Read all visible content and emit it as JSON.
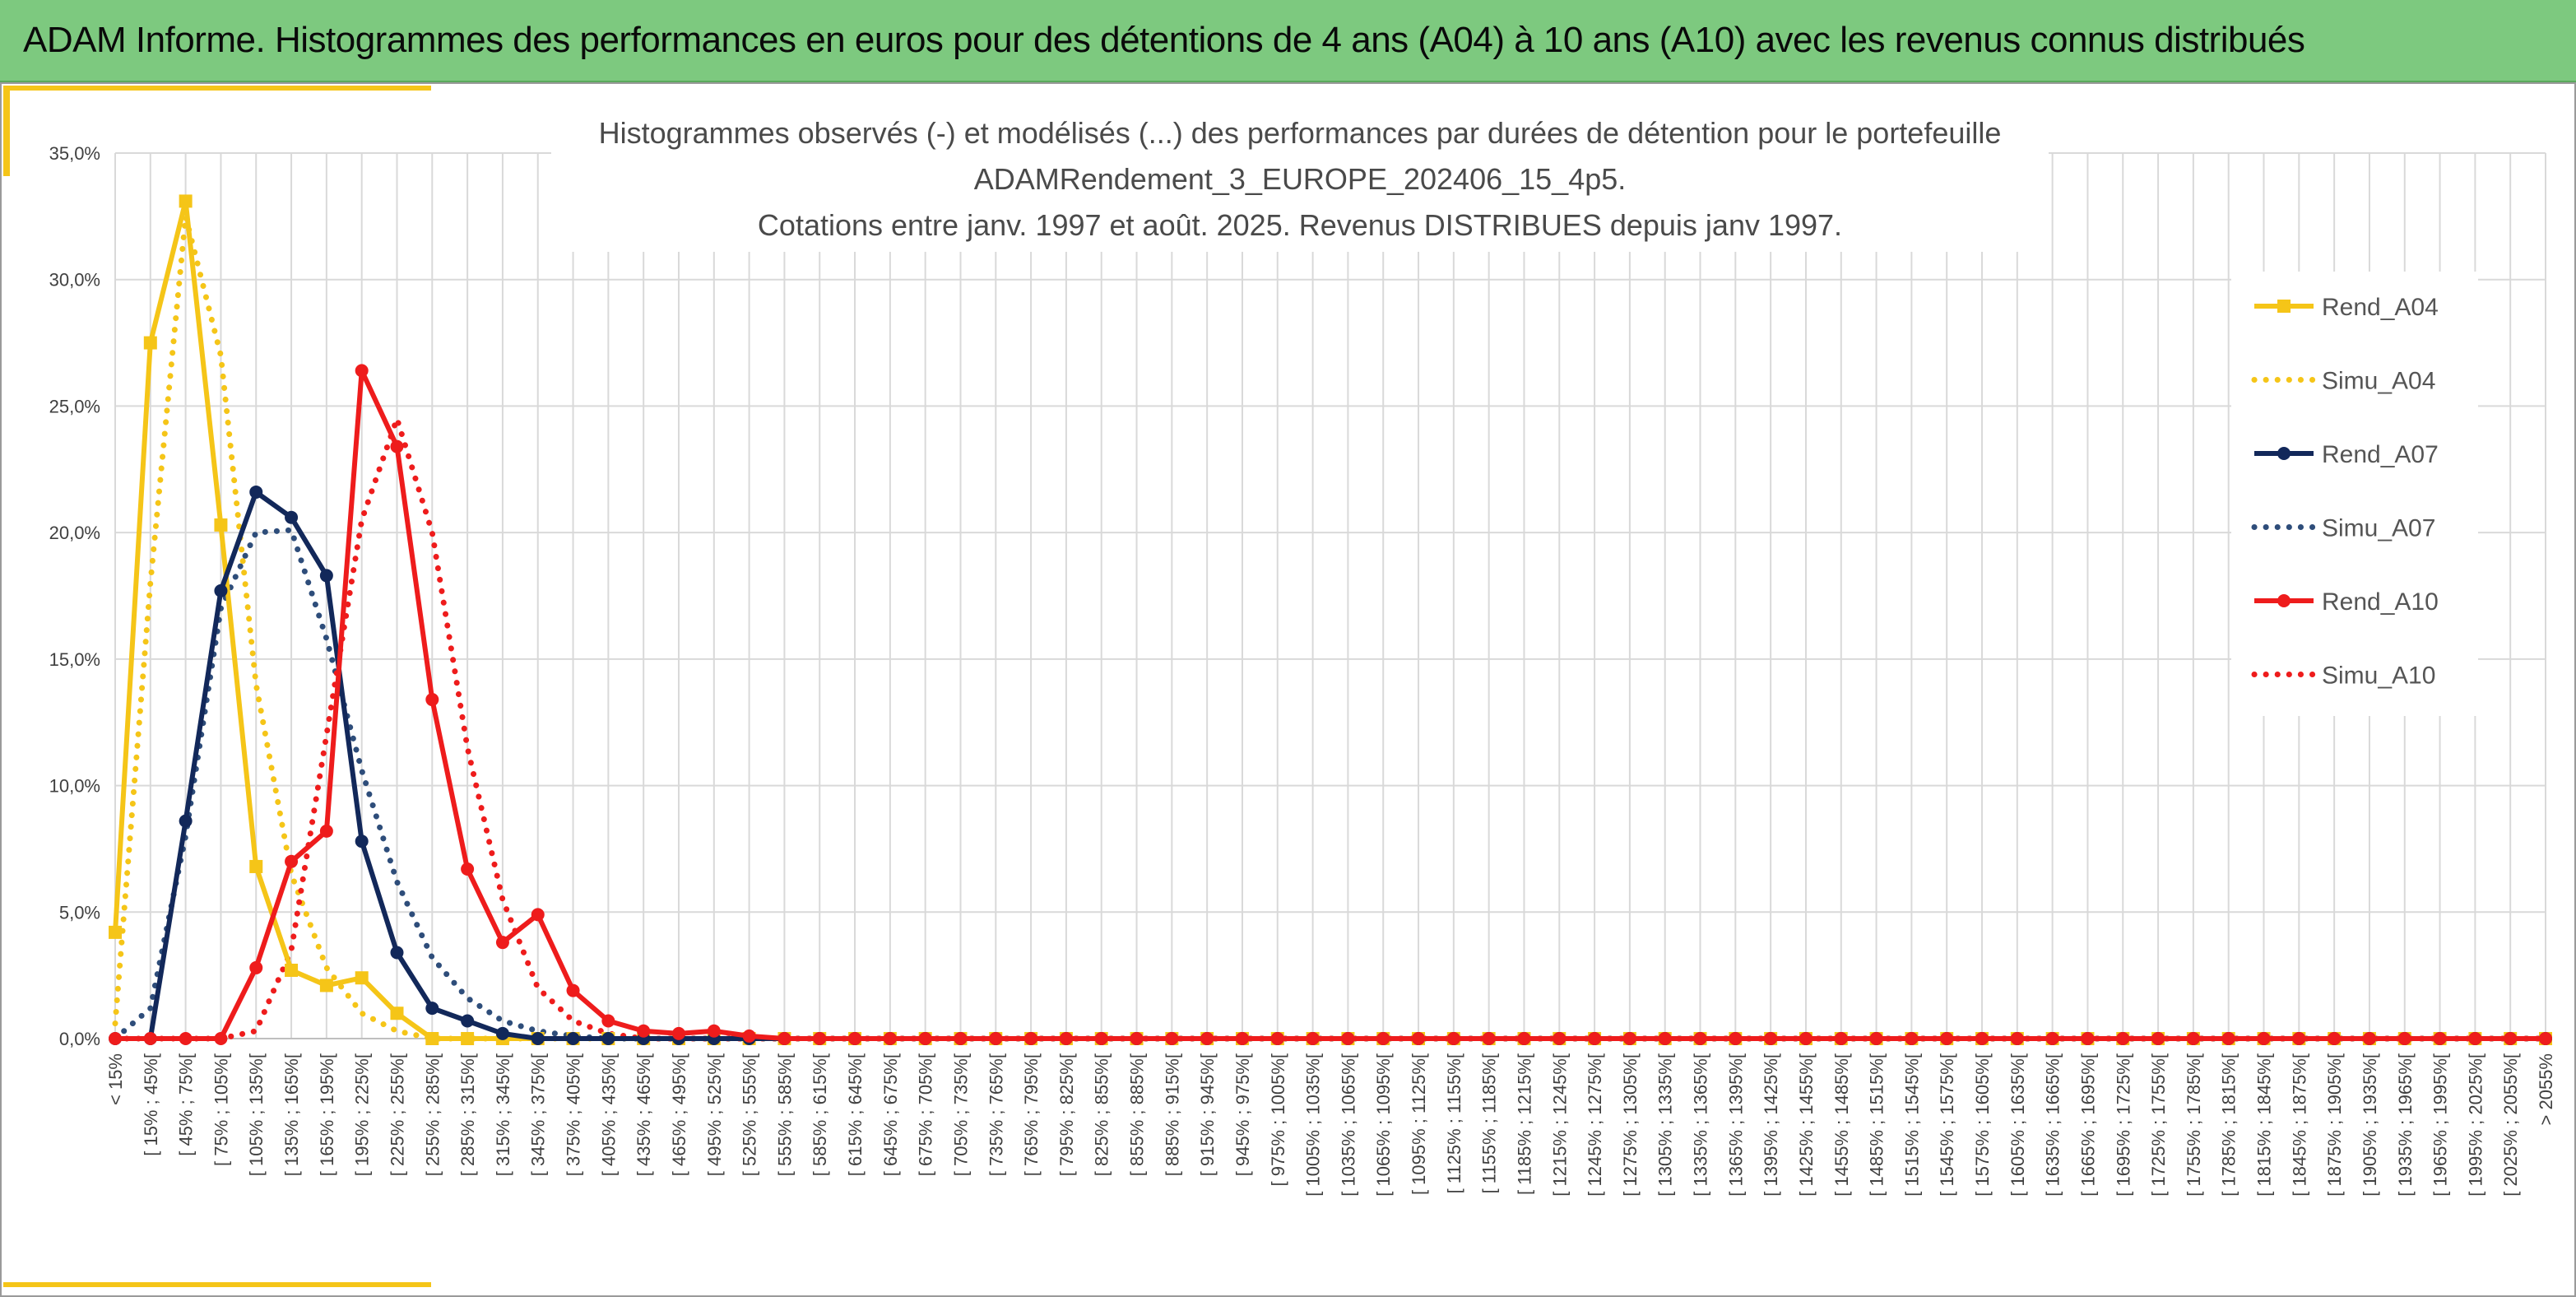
{
  "header": {
    "title": "ADAM Informe. Histogrammes des performances en euros pour des détentions de 4 ans (A04) à 10 ans (A10) avec les revenus connus distribués"
  },
  "colors": {
    "banner": "#7dc97f",
    "accent": "#f5c518",
    "A04": "#f5c518",
    "A07": "#12285a",
    "A07_simu": "#2e4d7a",
    "A10": "#ee1c1c",
    "grid": "#d9d9d9"
  },
  "chart_data": {
    "type": "line",
    "title_lines": [
      "Histogrammes observés (-) et modélisés (...) des performances par durées de détention pour le portefeuille",
      "ADAMRendement_3_EUROPE_202406_15_4p5.",
      "Cotations entre janv. 1997 et août. 2025. Revenus DISTRIBUES depuis janv 1997."
    ],
    "xlabel": "",
    "ylabel": "",
    "ylim": [
      0,
      35
    ],
    "y_ticks": [
      "0,0%",
      "5,0%",
      "10,0%",
      "15,0%",
      "20,0%",
      "25,0%",
      "30,0%",
      "35,0%"
    ],
    "grid": true,
    "legend_position": "right",
    "categories": [
      "< 15%",
      "[ 15% ; 45%[",
      "[ 45% ; 75%[",
      "[ 75% ; 105%[",
      "[ 105% ; 135%[",
      "[ 135% ; 165%[",
      "[ 165% ; 195%[",
      "[ 195% ; 225%[",
      "[ 225% ; 255%[",
      "[ 255% ; 285%[",
      "[ 285% ; 315%[",
      "[ 315% ; 345%[",
      "[ 345% ; 375%[",
      "[ 375% ; 405%[",
      "[ 405% ; 435%[",
      "[ 435% ; 465%[",
      "[ 465% ; 495%[",
      "[ 495% ; 525%[",
      "[ 525% ; 555%[",
      "[ 555% ; 585%[",
      "[ 585% ; 615%[",
      "[ 615% ; 645%[",
      "[ 645% ; 675%[",
      "[ 675% ; 705%[",
      "[ 705% ; 735%[",
      "[ 735% ; 765%[",
      "[ 765% ; 795%[",
      "[ 795% ; 825%[",
      "[ 825% ; 855%[",
      "[ 855% ; 885%[",
      "[ 885% ; 915%[",
      "[ 915% ; 945%[",
      "[ 945% ; 975%[",
      "[ 975% ; 1005%[",
      "[ 1005% ; 1035%[",
      "[ 1035% ; 1065%[",
      "[ 1065% ; 1095%[",
      "[ 1095% ; 1125%[",
      "[ 1125% ; 1155%[",
      "[ 1155% ; 1185%[",
      "[ 1185% ; 1215%[",
      "[ 1215% ; 1245%[",
      "[ 1245% ; 1275%[",
      "[ 1275% ; 1305%[",
      "[ 1305% ; 1335%[",
      "[ 1335% ; 1365%[",
      "[ 1365% ; 1395%[",
      "[ 1395% ; 1425%[",
      "[ 1425% ; 1455%[",
      "[ 1455% ; 1485%[",
      "[ 1485% ; 1515%[",
      "[ 1515% ; 1545%[",
      "[ 1545% ; 1575%[",
      "[ 1575% ; 1605%[",
      "[ 1605% ; 1635%[",
      "[ 1635% ; 1665%[",
      "[ 1665% ; 1695%[",
      "[ 1695% ; 1725%[",
      "[ 1725% ; 1755%[",
      "[ 1755% ; 1785%[",
      "[ 1785% ; 1815%[",
      "[ 1815% ; 1845%[",
      "[ 1845% ; 1875%[",
      "[ 1875% ; 1905%[",
      "[ 1905% ; 1935%[",
      "[ 1935% ; 1965%[",
      "[ 1965% ; 1995%[",
      "[ 1995% ; 2025%[",
      "[ 2025% ; 2055%[",
      "> 2055%"
    ],
    "series": [
      {
        "name": "Rend_A04",
        "style": "solid",
        "marker": "square",
        "color": "#f5c518",
        "values": [
          4.2,
          27.5,
          33.1,
          20.3,
          6.8,
          2.7,
          2.1,
          2.4,
          1.0,
          0,
          0,
          0,
          0,
          0,
          0,
          0,
          0,
          0,
          0,
          0,
          0,
          0,
          0,
          0,
          0,
          0,
          0,
          0,
          0,
          0,
          0,
          0,
          0,
          0,
          0,
          0,
          0,
          0,
          0,
          0,
          0,
          0,
          0,
          0,
          0,
          0,
          0,
          0,
          0,
          0,
          0,
          0,
          0,
          0,
          0,
          0,
          0,
          0,
          0,
          0,
          0,
          0,
          0,
          0,
          0,
          0,
          0,
          0,
          0,
          0
        ]
      },
      {
        "name": "Simu_A04",
        "style": "dotted",
        "marker": "none",
        "color": "#f5c518",
        "values": [
          0.6,
          18.0,
          32.5,
          27.0,
          14.0,
          6.5,
          2.8,
          1.0,
          0.3,
          0,
          0,
          0,
          0,
          0,
          0,
          0,
          0,
          0,
          0,
          0,
          0,
          0,
          0,
          0,
          0,
          0,
          0,
          0,
          0,
          0,
          0,
          0,
          0,
          0,
          0,
          0,
          0,
          0,
          0,
          0,
          0,
          0,
          0,
          0,
          0,
          0,
          0,
          0,
          0,
          0,
          0,
          0,
          0,
          0,
          0,
          0,
          0,
          0,
          0,
          0,
          0,
          0,
          0,
          0,
          0,
          0,
          0,
          0,
          0,
          0
        ]
      },
      {
        "name": "Rend_A07",
        "style": "solid",
        "marker": "circle",
        "color": "#12285a",
        "values": [
          0,
          0,
          8.6,
          17.7,
          21.6,
          20.6,
          18.3,
          7.8,
          3.4,
          1.2,
          0.7,
          0.2,
          0,
          0,
          0,
          0,
          0,
          0,
          0,
          0,
          0,
          0,
          0,
          0,
          0,
          0,
          0,
          0,
          0,
          0,
          0,
          0,
          0,
          0,
          0,
          0,
          0,
          0,
          0,
          0,
          0,
          0,
          0,
          0,
          0,
          0,
          0,
          0,
          0,
          0,
          0,
          0,
          0,
          0,
          0,
          0,
          0,
          0,
          0,
          0,
          0,
          0,
          0,
          0,
          0,
          0,
          0,
          0,
          0,
          0
        ]
      },
      {
        "name": "Simu_A07",
        "style": "dotted",
        "marker": "none",
        "color": "#2e4d7a",
        "values": [
          0,
          1.2,
          8.0,
          17.0,
          20.0,
          20.1,
          15.8,
          10.6,
          6.2,
          3.2,
          1.6,
          0.7,
          0.3,
          0.1,
          0,
          0,
          0,
          0,
          0,
          0,
          0,
          0,
          0,
          0,
          0,
          0,
          0,
          0,
          0,
          0,
          0,
          0,
          0,
          0,
          0,
          0,
          0,
          0,
          0,
          0,
          0,
          0,
          0,
          0,
          0,
          0,
          0,
          0,
          0,
          0,
          0,
          0,
          0,
          0,
          0,
          0,
          0,
          0,
          0,
          0,
          0,
          0,
          0,
          0,
          0,
          0,
          0,
          0,
          0,
          0
        ]
      },
      {
        "name": "Rend_A10",
        "style": "solid",
        "marker": "circle",
        "color": "#ee1c1c",
        "values": [
          0,
          0,
          0,
          0,
          2.8,
          7.0,
          8.2,
          26.4,
          23.4,
          13.4,
          6.7,
          3.8,
          4.9,
          1.9,
          0.7,
          0.3,
          0.2,
          0.3,
          0.1,
          0,
          0,
          0,
          0,
          0,
          0,
          0,
          0,
          0,
          0,
          0,
          0,
          0,
          0,
          0,
          0,
          0,
          0,
          0,
          0,
          0,
          0,
          0,
          0,
          0,
          0,
          0,
          0,
          0,
          0,
          0,
          0,
          0,
          0,
          0,
          0,
          0,
          0,
          0,
          0,
          0,
          0,
          0,
          0,
          0,
          0,
          0,
          0,
          0,
          0,
          0
        ]
      },
      {
        "name": "Simu_A10",
        "style": "dotted",
        "marker": "none",
        "color": "#ee1c1c",
        "values": [
          0,
          0,
          0,
          0,
          0.3,
          3.5,
          12.0,
          20.5,
          24.5,
          20.0,
          11.5,
          5.5,
          2.0,
          0.7,
          0.2,
          0,
          0,
          0,
          0,
          0,
          0,
          0,
          0,
          0,
          0,
          0,
          0,
          0,
          0,
          0,
          0,
          0,
          0,
          0,
          0,
          0,
          0,
          0,
          0,
          0,
          0,
          0,
          0,
          0,
          0,
          0,
          0,
          0,
          0,
          0,
          0,
          0,
          0,
          0,
          0,
          0,
          0,
          0,
          0,
          0,
          0,
          0,
          0,
          0,
          0,
          0,
          0,
          0,
          0,
          0
        ]
      }
    ]
  }
}
